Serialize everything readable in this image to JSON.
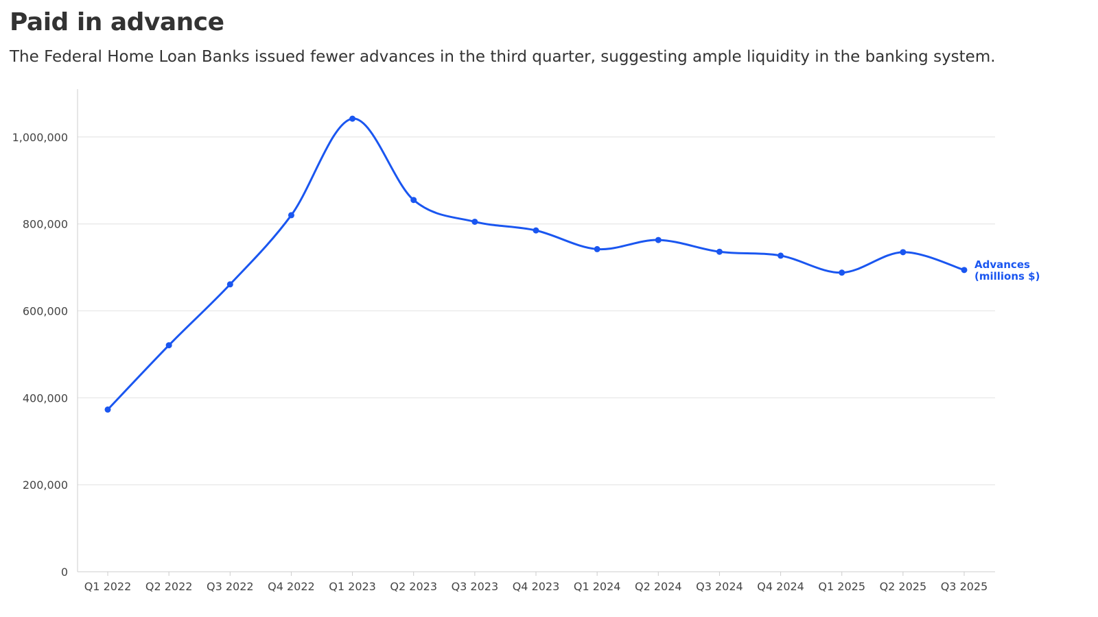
{
  "title": "Paid in advance",
  "subtitle": "The Federal Home Loan Banks issued fewer advances in the third quarter, suggesting ample liquidity in the banking system.",
  "colors": {
    "line": "#1a56f0",
    "grid": "#e6e6e6",
    "axis": "#cccccc",
    "text": "#333333"
  },
  "chart_data": {
    "type": "line",
    "categories": [
      "Q1 2022",
      "Q2 2022",
      "Q3 2022",
      "Q4 2022",
      "Q1 2023",
      "Q2 2023",
      "Q3 2023",
      "Q4 2023",
      "Q1 2024",
      "Q2 2024",
      "Q3 2024",
      "Q4 2024",
      "Q1 2025",
      "Q2 2025",
      "Q3 2025"
    ],
    "series": [
      {
        "name": "Advances (millions $)",
        "name_lines": [
          "Advances",
          "(millions $)"
        ],
        "values": [
          373000,
          521000,
          661000,
          820000,
          1042000,
          855000,
          805000,
          785000,
          742000,
          763000,
          736000,
          727000,
          688000,
          735000,
          694000
        ]
      }
    ],
    "yticks": [
      0,
      200000,
      400000,
      600000,
      800000,
      1000000
    ],
    "ytick_labels": [
      "0",
      "200,000",
      "400,000",
      "600,000",
      "800,000",
      "1,000,000"
    ],
    "ylim": [
      0,
      1110000
    ],
    "grid": true,
    "legend": "inline label at end of line",
    "xlabel": "",
    "ylabel": ""
  }
}
